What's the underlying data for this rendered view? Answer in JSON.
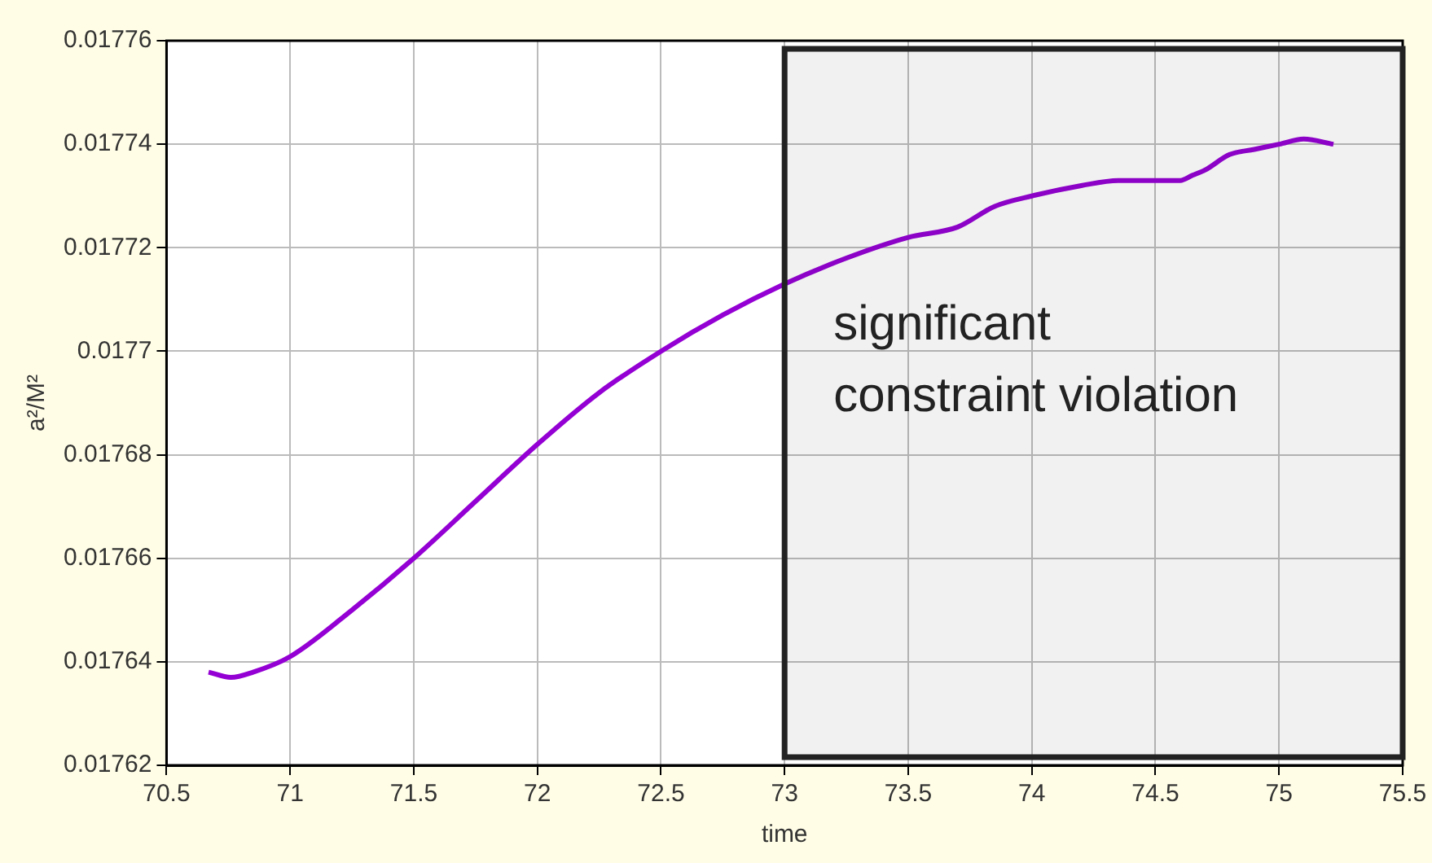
{
  "chart_data": {
    "type": "line",
    "xlabel": "time",
    "ylabel": "a²/M²",
    "series": [
      {
        "color": "#9400d3",
        "x": [
          70.67,
          70.76,
          70.85,
          71,
          71.25,
          71.5,
          71.75,
          72,
          72.25,
          72.5,
          72.75,
          73,
          73.25,
          73.5,
          73.7,
          73.85,
          74,
          74.2,
          74.35,
          74.5,
          74.6,
          74.65,
          74.7,
          74.8,
          74.9,
          75,
          75.1,
          75.22
        ],
        "values": [
          0.017638,
          0.017637,
          0.017638,
          0.017641,
          0.01765,
          0.01766,
          0.017671,
          0.017682,
          0.017692,
          0.0177,
          0.017707,
          0.017713,
          0.017718,
          0.017722,
          0.017724,
          0.017728,
          0.01773,
          0.017732,
          0.017733,
          0.017733,
          0.017733,
          0.017734,
          0.017735,
          0.017738,
          0.017739,
          0.01774,
          0.017741,
          0.01774
        ]
      }
    ],
    "xlim": [
      70.5,
      75.5
    ],
    "xticks": [
      70.5,
      71,
      71.5,
      72,
      72.5,
      73,
      73.5,
      74,
      74.5,
      75,
      75.5
    ],
    "ylim": [
      0.01762,
      0.01776
    ],
    "yticks": [
      0.01762,
      0.01764,
      0.01766,
      0.01768,
      0.0177,
      0.01772,
      0.01774,
      0.01776
    ],
    "grid": true,
    "legend": false,
    "marker": "none",
    "line_style": "solid",
    "bands": [
      {
        "axis": "x",
        "from": 73,
        "to": 75.5,
        "label": "significant constraint violation",
        "color": "#222222"
      }
    ]
  }
}
